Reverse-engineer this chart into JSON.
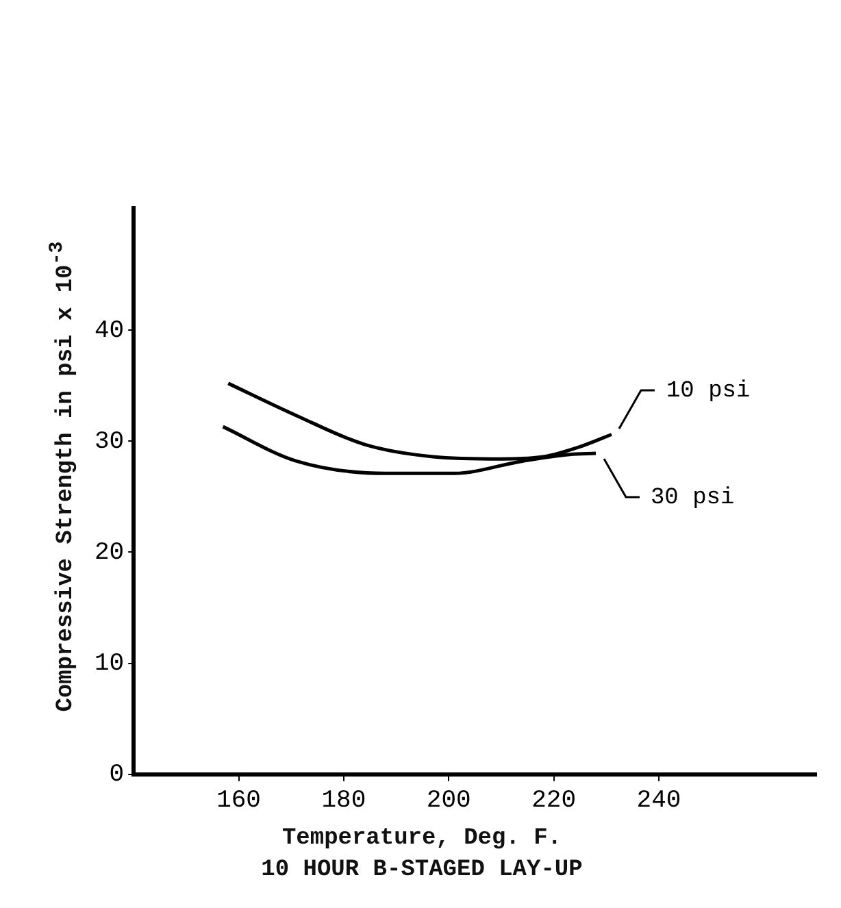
{
  "chart_data": {
    "type": "line",
    "title": "10 HOUR B-STAGED LAY-UP",
    "xlabel": "Temperature, Deg. F.",
    "ylabel": "Compressive Strength in psi x 10$^{-3}$",
    "xlim": [
      140,
      270
    ],
    "xticks": [
      160,
      180,
      200,
      220,
      240
    ],
    "ylim": [
      0,
      51
    ],
    "yticks": [
      0,
      10,
      20,
      30,
      40
    ],
    "grid": false,
    "legend": false,
    "marker": "none",
    "line_style": "solid",
    "series": [
      {
        "color": "#000000",
        "x": [
          158,
          171,
          184,
          197,
          210,
          218,
          225,
          231
        ],
        "values": [
          35.2,
          32.3,
          29.7,
          28.6,
          28.4,
          28.6,
          29.5,
          30.6
        ]
      },
      {
        "color": "#000000",
        "x": [
          157,
          171,
          188,
          201,
          214,
          223,
          228
        ],
        "values": [
          31.3,
          28.2,
          27.1,
          27.1,
          28.2,
          28.8,
          28.9
        ]
      }
    ],
    "annotations": [
      {
        "text": "10 psi",
        "x": 231,
        "y": 30.6
      },
      {
        "text": "30 psi",
        "x": 228,
        "y": 28.9
      }
    ]
  }
}
